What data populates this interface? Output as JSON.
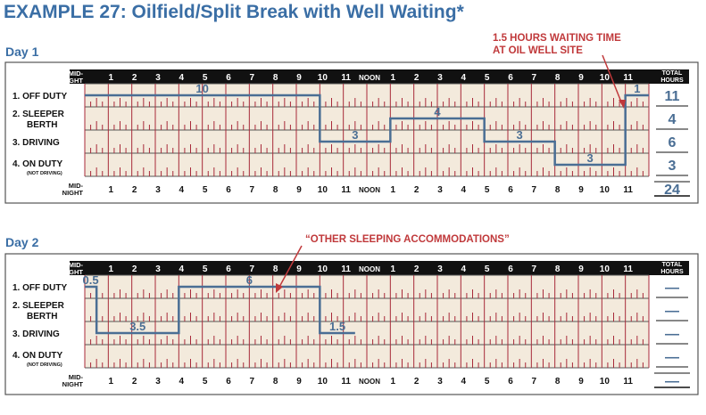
{
  "title": "EXAMPLE 27: Oilfield/Split Break with Well Waiting*",
  "midnight_label": [
    "MID-",
    "NIGHT"
  ],
  "noon_label": "NOON",
  "hour_labels": [
    "1",
    "2",
    "3",
    "4",
    "5",
    "6",
    "7",
    "8",
    "9",
    "10",
    "11",
    "1",
    "2",
    "3",
    "4",
    "5",
    "6",
    "7",
    "8",
    "9",
    "10",
    "11"
  ],
  "total_header": [
    "TOTAL",
    "HOURS"
  ],
  "row_labels": [
    {
      "line1": "1. OFF DUTY",
      "line2": ""
    },
    {
      "line1": "2. SLEEPER",
      "line2": "BERTH"
    },
    {
      "line1": "3. DRIVING",
      "line2": ""
    },
    {
      "line1": "4. ON DUTY",
      "line2": "(NOT DRIVING)"
    }
  ],
  "days": [
    {
      "label": "Day 1",
      "totals": [
        "11",
        "4",
        "6",
        "3"
      ],
      "grand_total": "24",
      "segments": [
        {
          "status": 0,
          "start": 0,
          "end": 10,
          "label": "10"
        },
        {
          "status": 2,
          "start": 10,
          "end": 13,
          "label": "3"
        },
        {
          "status": 1,
          "start": 13,
          "end": 17,
          "label": "4"
        },
        {
          "status": 2,
          "start": 17,
          "end": 20,
          "label": "3"
        },
        {
          "status": 3,
          "start": 20,
          "end": 23,
          "label": "3"
        },
        {
          "status": 0,
          "start": 23,
          "end": 24,
          "label": "1"
        }
      ],
      "annotation": [
        "1.5 HOURS WAITING TIME",
        "AT OIL WELL SITE"
      ]
    },
    {
      "label": "Day 2",
      "totals": [
        "—",
        "—",
        "—",
        "—"
      ],
      "grand_total": "—",
      "segments": [
        {
          "status": 0,
          "start": 0,
          "end": 0.5,
          "label": "0.5"
        },
        {
          "status": 2,
          "start": 0.5,
          "end": 4,
          "label": "3.5"
        },
        {
          "status": 0,
          "start": 4,
          "end": 10,
          "label": "6"
        },
        {
          "status": 2,
          "start": 10,
          "end": 11.5,
          "label": "1.5"
        }
      ],
      "annotation": [
        "“OTHER SLEEPING ACCOMMODATIONS”"
      ]
    }
  ],
  "colors": {
    "title": "#3a6ea5",
    "grid_bg": "#f3eadc",
    "tick": "#a82a3a",
    "line": "#4a6e94",
    "annotation": "#c0393b"
  }
}
